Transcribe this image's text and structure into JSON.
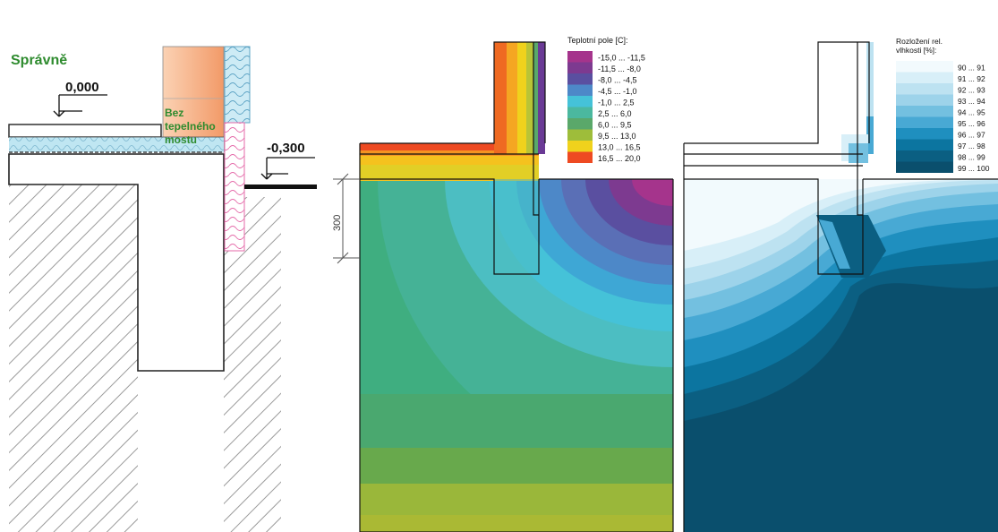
{
  "left_panel": {
    "status": "Správně",
    "level_top": "0,000",
    "level_ground": "-0,300",
    "note_line1": "Bez",
    "note_line2": "tepelného",
    "note_line3": "mostu",
    "colors": {
      "status": "#2e8b2e",
      "insulation_warm": "#f5a77a",
      "insulation_cool": "#bfe6f2",
      "xps": "#f4a6cf"
    }
  },
  "middle_panel": {
    "dimension": "300",
    "legend": {
      "title": "Teplotní pole [C]:",
      "items": [
        {
          "label": "-15,0 ... -11,5",
          "color": "#a5348c"
        },
        {
          "label": "-11,5 ... -8,0",
          "color": "#7d3a90"
        },
        {
          "label": "-8,0 ... -4,5",
          "color": "#5a4fa0"
        },
        {
          "label": "-4,5 ... -1,0",
          "color": "#4d88c8"
        },
        {
          "label": "-1,0 ... 2,5",
          "color": "#45c2d8"
        },
        {
          "label": "2,5 ... 6,0",
          "color": "#4bb89f"
        },
        {
          "label": "6,0 ... 9,5",
          "color": "#5aa86a"
        },
        {
          "label": "9,5 ... 13,0",
          "color": "#9ebd3a"
        },
        {
          "label": "13,0 ... 16,5",
          "color": "#f0d21c"
        },
        {
          "label": "16,5 ... 20,0",
          "color": "#ee4a22"
        }
      ]
    }
  },
  "right_panel": {
    "legend": {
      "title_line1": "Rozložení rel.",
      "title_line2": "vlhkosti [%]:",
      "items": [
        {
          "label": "90 ... 91",
          "color": "#f2fafd"
        },
        {
          "label": "91 ... 92",
          "color": "#d8eff8"
        },
        {
          "label": "92 ... 93",
          "color": "#bde2f1"
        },
        {
          "label": "93 ... 94",
          "color": "#9dd3ea"
        },
        {
          "label": "94 ... 95",
          "color": "#73c0e0"
        },
        {
          "label": "95 ... 96",
          "color": "#48a9d4"
        },
        {
          "label": "96 ... 97",
          "color": "#1f8fbf"
        },
        {
          "label": "97 ... 98",
          "color": "#0c75a0"
        },
        {
          "label": "98 ... 99",
          "color": "#0b5f82"
        },
        {
          "label": "99 ... 100",
          "color": "#0a4f6d"
        }
      ]
    }
  }
}
